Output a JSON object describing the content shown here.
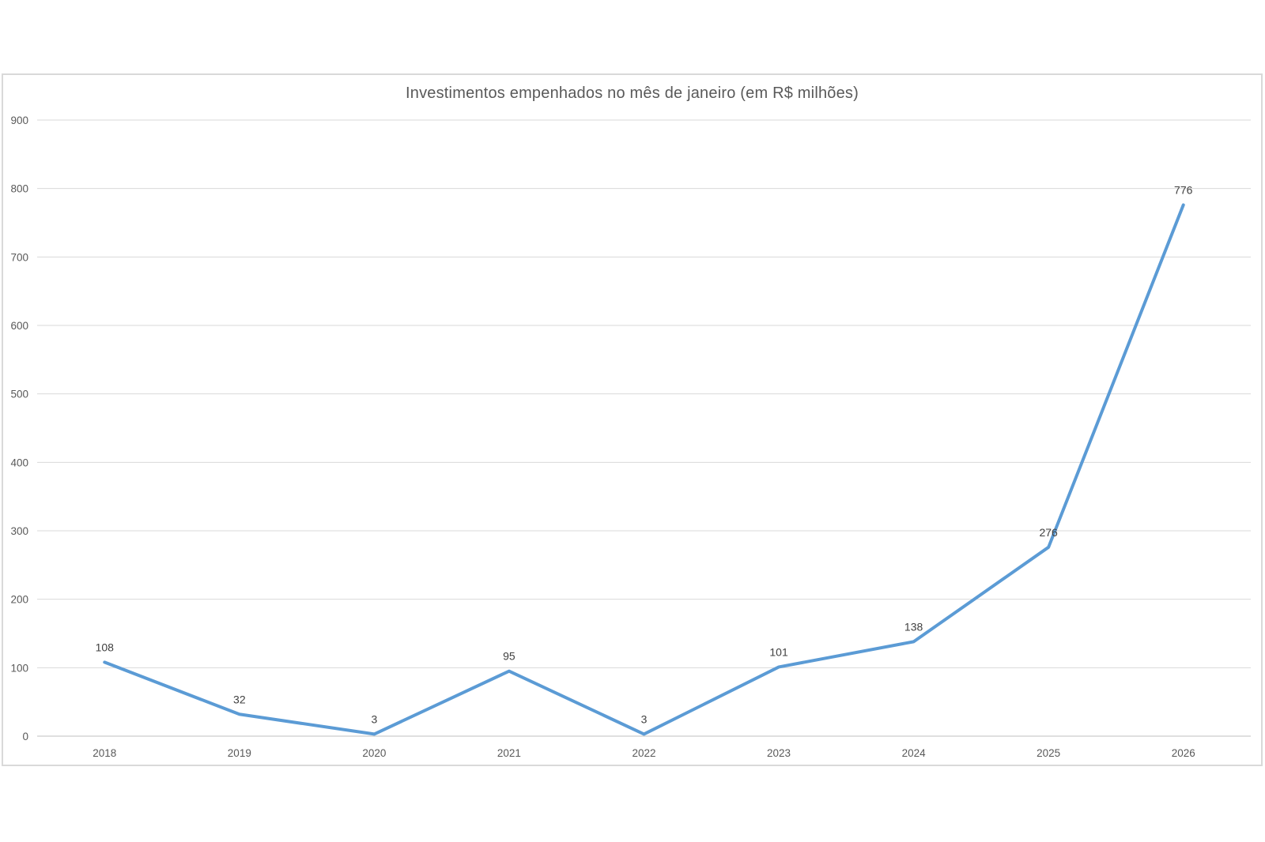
{
  "chart_data": {
    "type": "line",
    "title": "Investimentos empenhados no mês de janeiro (em R$ milhões)",
    "categories": [
      "2018",
      "2019",
      "2020",
      "2021",
      "2022",
      "2023",
      "2024",
      "2025",
      "2026"
    ],
    "values": [
      108,
      32,
      3,
      95,
      3,
      101,
      138,
      276,
      776
    ],
    "show_data_labels": true,
    "xlabel": "",
    "ylabel": "",
    "ylim": [
      0,
      900
    ],
    "ytick_step": 100,
    "ytick_labels": [
      "0",
      "100",
      "200",
      "300",
      "400",
      "500",
      "600",
      "700",
      "800",
      "900"
    ],
    "grid": "horizontal",
    "legend": "none"
  },
  "colors": {
    "series_line": "#5B9BD5",
    "gridline": "#D9D9D9",
    "axis_line": "#BFBFBF",
    "tick_text": "#595959",
    "data_label_text": "#404040",
    "title_text": "#595959",
    "frame_border": "#D9D9D9",
    "background": "#FFFFFF"
  }
}
